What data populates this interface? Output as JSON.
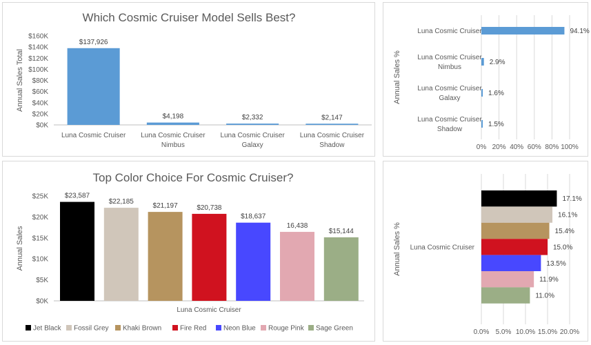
{
  "chart_data": [
    {
      "type": "bar",
      "title": "Which Cosmic Cruiser Model Sells Best?",
      "ylabel": "Annual Sales Total",
      "categories": [
        [
          "Luna Cosmic Cruiser"
        ],
        [
          "Luna Cosmic Cruiser",
          "Nimbus"
        ],
        [
          "Luna Cosmic Cruiser",
          "Galaxy"
        ],
        [
          "Luna Cosmic Cruiser",
          "Shadow"
        ]
      ],
      "values": [
        137926,
        4198,
        2332,
        2147
      ],
      "data_labels": [
        "$137,926",
        "$4,198",
        "$2,332",
        "$2,147"
      ],
      "ylim": [
        0,
        160000
      ],
      "yticks": [
        0,
        20000,
        40000,
        60000,
        80000,
        100000,
        120000,
        140000,
        160000
      ],
      "ytick_labels": [
        "$0K",
        "$20K",
        "$40K",
        "$60K",
        "$80K",
        "$100K",
        "$120K",
        "$140K",
        "$160K"
      ],
      "color": "#5b9bd5",
      "grid": false
    },
    {
      "type": "bar",
      "orientation": "horizontal",
      "ylabel": "Annual Sales %",
      "categories": [
        [
          "Luna Cosmic Cruiser"
        ],
        [
          "Luna Cosmic Cruiser",
          "Nimbus"
        ],
        [
          "Luna Cosmic Cruiser",
          "Galaxy"
        ],
        [
          "Luna Cosmic Cruiser",
          "Shadow"
        ]
      ],
      "values": [
        94.1,
        2.9,
        1.6,
        1.5
      ],
      "data_labels": [
        "94.1%",
        "2.9%",
        "1.6%",
        "1.5%"
      ],
      "xlim": [
        0,
        100
      ],
      "xticks": [
        0,
        20,
        40,
        60,
        80,
        100
      ],
      "xtick_labels": [
        "0%",
        "20%",
        "40%",
        "60%",
        "80%",
        "100%"
      ],
      "color": "#5b9bd5",
      "grid": true
    },
    {
      "type": "bar",
      "title": "Top Color Choice For Cosmic Cruiser?",
      "ylabel": "Annual Sales",
      "xlabel": "Luna Cosmic Cruiser",
      "series": [
        {
          "name": "Jet Black",
          "values": [
            23587
          ],
          "label": "$23,587",
          "color": "#000000"
        },
        {
          "name": "Fossil Grey",
          "values": [
            22185
          ],
          "label": "$22,185",
          "color": "#d0c6ba"
        },
        {
          "name": "Khaki Brown",
          "values": [
            21197
          ],
          "label": "$21,197",
          "color": "#b6945f"
        },
        {
          "name": "Fire Red",
          "values": [
            20738
          ],
          "label": "$20,738",
          "color": "#d0121f"
        },
        {
          "name": "Neon Blue",
          "values": [
            18637
          ],
          "label": "$18,637",
          "color": "#4848ff"
        },
        {
          "name": "Rouge Pink",
          "values": [
            16438
          ],
          "label": "16,438",
          "color": "#e2a8b1"
        },
        {
          "name": "Sage Green",
          "values": [
            15144
          ],
          "label": "$15,144",
          "color": "#9bae86"
        }
      ],
      "ylim": [
        0,
        25000
      ],
      "yticks": [
        0,
        5000,
        10000,
        15000,
        20000,
        25000
      ],
      "ytick_labels": [
        "$0K",
        "$5K",
        "$10K",
        "$15K",
        "$20K",
        "$25K"
      ],
      "legend": "bottom",
      "grid": false
    },
    {
      "type": "bar",
      "orientation": "horizontal",
      "ylabel": "Annual Sales %",
      "categories": [
        "Luna Cosmic Cruiser"
      ],
      "series": [
        {
          "values": [
            17.1
          ],
          "label": "17.1%",
          "color": "#000000"
        },
        {
          "values": [
            16.1
          ],
          "label": "16.1%",
          "color": "#d0c6ba"
        },
        {
          "values": [
            15.4
          ],
          "label": "15.4%",
          "color": "#b6945f"
        },
        {
          "values": [
            15.0
          ],
          "label": "15.0%",
          "color": "#d0121f"
        },
        {
          "values": [
            13.5
          ],
          "label": "13.5%",
          "color": "#4848ff"
        },
        {
          "values": [
            11.9
          ],
          "label": "11.9%",
          "color": "#e2a8b1"
        },
        {
          "values": [
            11.0
          ],
          "label": "11.0%",
          "color": "#9bae86"
        }
      ],
      "xlim": [
        0,
        20
      ],
      "xticks": [
        0,
        5,
        10,
        15,
        20
      ],
      "xtick_labels": [
        "0.0%",
        "5.0%",
        "10.0%",
        "15.0%",
        "20.0%"
      ],
      "grid": true
    }
  ]
}
